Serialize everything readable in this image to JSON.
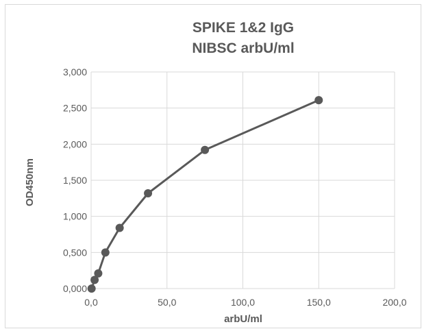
{
  "chart_data": {
    "type": "scatter",
    "title": [
      "SPIKE 1&2 IgG",
      "NIBSC arbU/ml"
    ],
    "xlabel": "arbU/ml",
    "ylabel": "OD450nm",
    "xlim": [
      0,
      200
    ],
    "ylim": [
      0,
      3
    ],
    "x_ticks": [
      "0,0",
      "50,0",
      "100,0",
      "150,0",
      "200,0"
    ],
    "y_ticks": [
      "0,000",
      "0,500",
      "1,000",
      "1,500",
      "2,000",
      "2,500",
      "3,000"
    ],
    "grid": true,
    "legend": "none",
    "series": [
      {
        "x": [
          0.3,
          2.3,
          4.7,
          9.4,
          18.8,
          37.5,
          75.0,
          150.0
        ],
        "y": [
          0.0,
          0.12,
          0.21,
          0.5,
          0.84,
          1.32,
          1.92,
          2.61
        ],
        "color": "#595959",
        "style": "line-with-markers"
      }
    ]
  }
}
